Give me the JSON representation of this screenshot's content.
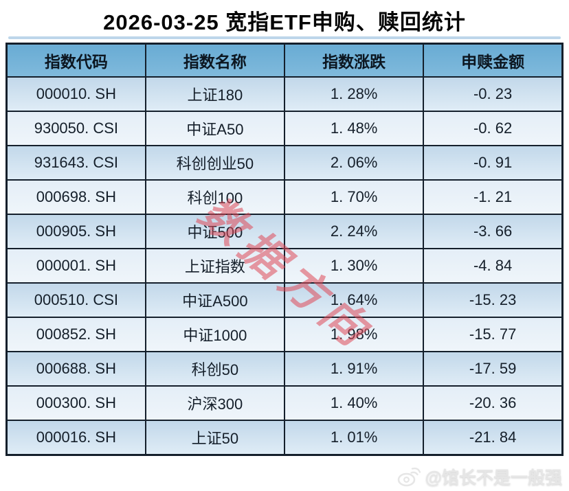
{
  "page": {
    "title": "2026-03-25 宽指ETF申购、赎回统计"
  },
  "table": {
    "headers": [
      "指数代码",
      "指数名称",
      "指数涨跌",
      "申赎金额"
    ],
    "rows": [
      [
        "000010. SH",
        "上证180",
        "1. 28%",
        "-0. 23"
      ],
      [
        "930050. CSI",
        "中证A50",
        "1. 48%",
        "-0. 62"
      ],
      [
        "931643. CSI",
        "科创创业50",
        "2. 06%",
        "-0. 91"
      ],
      [
        "000698. SH",
        "科创100",
        "1. 70%",
        "-1. 21"
      ],
      [
        "000905. SH",
        "中证500",
        "2. 24%",
        "-3. 66"
      ],
      [
        "000001. SH",
        "上证指数",
        "1. 30%",
        "-4. 84"
      ],
      [
        "000510. CSI",
        "中证A500",
        "1. 64%",
        "-15. 23"
      ],
      [
        "000852. SH",
        "中证1000",
        "1. 98%",
        "-15. 77"
      ],
      [
        "000688. SH",
        "科创50",
        "1. 91%",
        "-17. 59"
      ],
      [
        "000300. SH",
        "沪深300",
        "1. 40%",
        "-20. 36"
      ],
      [
        "000016. SH",
        "上证50",
        "1. 01%",
        "-21. 84"
      ]
    ]
  },
  "chart_data": {
    "type": "table",
    "title": "2026-03-25 宽指ETF申购、赎回统计",
    "columns": [
      "指数代码",
      "指数名称",
      "指数涨跌",
      "申赎金额"
    ],
    "index_codes": [
      "000010.SH",
      "930050.CSI",
      "931643.CSI",
      "000698.SH",
      "000905.SH",
      "000001.SH",
      "000510.CSI",
      "000852.SH",
      "000688.SH",
      "000300.SH",
      "000016.SH"
    ],
    "index_names": [
      "上证180",
      "中证A50",
      "科创创业50",
      "科创100",
      "中证500",
      "上证指数",
      "中证A500",
      "中证1000",
      "科创50",
      "沪深300",
      "上证50"
    ],
    "index_change_pct": [
      1.28,
      1.48,
      2.06,
      1.7,
      2.24,
      1.3,
      1.64,
      1.98,
      1.91,
      1.4,
      1.01
    ],
    "net_subscription_amount": [
      -0.23,
      -0.62,
      -0.91,
      -1.21,
      -3.66,
      -4.84,
      -15.23,
      -15.77,
      -17.59,
      -20.36,
      -21.84
    ]
  },
  "watermarks": {
    "diagonal_text": "数据方向",
    "diagonal_color": "#df4957",
    "footer_text": "@馆长不是一般强",
    "footer_icon": "weibo-logo"
  },
  "colors": {
    "header_bg": "#74b3d8",
    "row_odd_bg": "#c9dded",
    "row_even_bg": "#e8f0f8",
    "border": "#141f2b",
    "strip": "#bdd6ea"
  }
}
